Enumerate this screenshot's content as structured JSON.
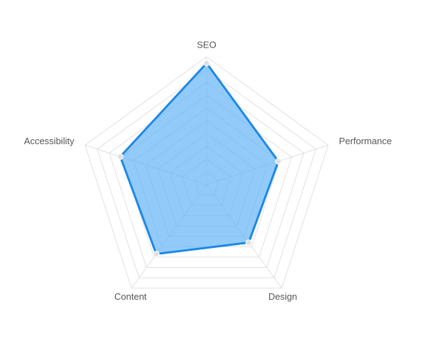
{
  "chart_data": {
    "type": "radar",
    "categories": [
      "SEO",
      "Performance",
      "Design",
      "Content",
      "Accessibility"
    ],
    "values": [
      95,
      59,
      56,
      67,
      71
    ],
    "color": "#1e88e5",
    "fill": "#64b5f6",
    "rlim": [
      0,
      100
    ],
    "rticks": [
      10,
      20,
      30,
      40,
      50,
      60,
      70,
      80,
      90,
      100
    ],
    "grid": true
  }
}
